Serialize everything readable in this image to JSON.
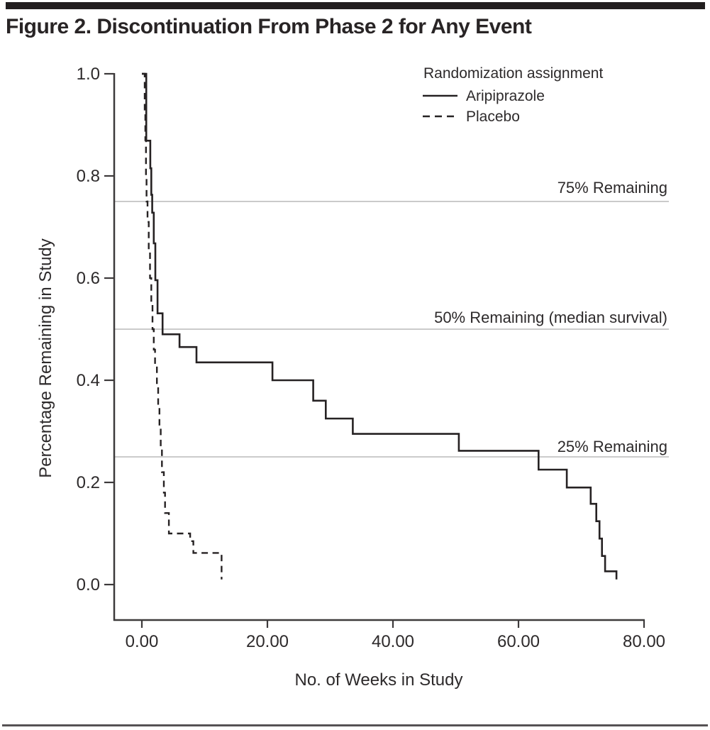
{
  "figure": {
    "title": "Figure 2. Discontinuation From Phase 2 for Any Event"
  },
  "chart_data": {
    "type": "line",
    "subtype": "kaplan-meier-step",
    "xlabel": "No. of Weeks in Study",
    "ylabel": "Percentage Remaining in Study",
    "xlim": [
      0,
      80
    ],
    "ylim": [
      0.0,
      1.0
    ],
    "grid": "horizontal-reference-lines-only",
    "x_tick_values": [
      0,
      20,
      40,
      60,
      80
    ],
    "x_tick_labels": [
      "0.00",
      "20.00",
      "40.00",
      "60.00",
      "80.00"
    ],
    "y_tick_values": [
      1.0,
      0.8,
      0.6,
      0.4,
      0.2,
      0.0
    ],
    "y_tick_labels": [
      "1.0",
      "0.8",
      "0.6",
      "0.4",
      "0.2",
      "0.0"
    ],
    "legend": {
      "position": "top-right-inside",
      "title": "Randomization assignment",
      "entries": [
        {
          "label": "Aripiprazole",
          "line": "solid"
        },
        {
          "label": "Placebo",
          "line": "dashed"
        }
      ]
    },
    "reference_lines": [
      {
        "value": 0.75,
        "label": "75% Remaining"
      },
      {
        "value": 0.5,
        "label": "50% Remaining (median survival)"
      },
      {
        "value": 0.25,
        "label": "25% Remaining"
      }
    ],
    "series": [
      {
        "name": "Aripiprazole",
        "style": "solid",
        "start_value": 1.0,
        "end_week": 75.7,
        "drops": [
          [
            0.7,
            0.869
          ],
          [
            1.35,
            0.815
          ],
          [
            1.5,
            0.763
          ],
          [
            1.65,
            0.728
          ],
          [
            1.9,
            0.668
          ],
          [
            2.15,
            0.596
          ],
          [
            2.5,
            0.531
          ],
          [
            3.3,
            0.49
          ],
          [
            6.0,
            0.465
          ],
          [
            8.7,
            0.435
          ],
          [
            20.8,
            0.4
          ],
          [
            27.3,
            0.36
          ],
          [
            29.3,
            0.325
          ],
          [
            33.6,
            0.295
          ],
          [
            50.5,
            0.262
          ],
          [
            63.2,
            0.225
          ],
          [
            67.7,
            0.19
          ],
          [
            71.5,
            0.158
          ],
          [
            72.4,
            0.124
          ],
          [
            72.9,
            0.09
          ],
          [
            73.3,
            0.056
          ],
          [
            73.8,
            0.026
          ],
          [
            75.6,
            0.01
          ]
        ]
      },
      {
        "name": "Placebo",
        "style": "dashed",
        "start_value": 1.0,
        "end_week": 12.75,
        "drops": [
          [
            0.45,
            0.93
          ],
          [
            0.55,
            0.87
          ],
          [
            0.65,
            0.8
          ],
          [
            0.75,
            0.75
          ],
          [
            0.9,
            0.71
          ],
          [
            1.1,
            0.65
          ],
          [
            1.3,
            0.6
          ],
          [
            1.5,
            0.55
          ],
          [
            1.7,
            0.5
          ],
          [
            1.9,
            0.46
          ],
          [
            2.1,
            0.425
          ],
          [
            2.4,
            0.39
          ],
          [
            2.6,
            0.35
          ],
          [
            2.8,
            0.31
          ],
          [
            3.0,
            0.27
          ],
          [
            3.2,
            0.22
          ],
          [
            3.5,
            0.18
          ],
          [
            3.7,
            0.14
          ],
          [
            4.3,
            0.1
          ],
          [
            7.7,
            0.085
          ],
          [
            8.2,
            0.062
          ],
          [
            12.7,
            0.01
          ]
        ]
      }
    ],
    "colors": {
      "line": "#262223",
      "grid": "#cbcbcb",
      "axis": "#3d3a3b",
      "text": "#2d2a2b",
      "title_bar": "#221e1f"
    }
  }
}
